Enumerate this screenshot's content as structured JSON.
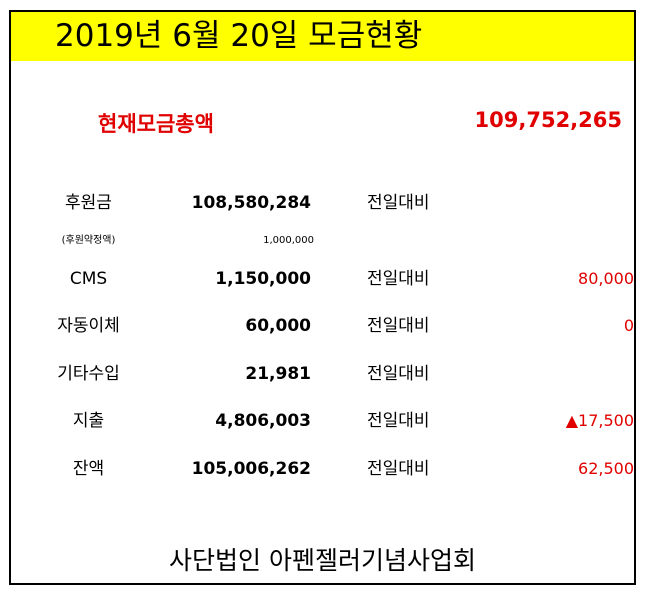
{
  "title": "2019년 6월 20일 모금현황",
  "total": {
    "label": "현재모금총액",
    "value": "109,752,265"
  },
  "compare_label": "전일대비",
  "rows": [
    {
      "label": "후원금",
      "value": "108,580,284",
      "compare": "전일대비",
      "diff": ""
    },
    {
      "label": "(후원약정액)",
      "value": "1,000,000",
      "compare": "",
      "diff": ""
    },
    {
      "label": "CMS",
      "value": "1,150,000",
      "compare": "전일대비",
      "diff": "80,000"
    },
    {
      "label": "자동이체",
      "value": "60,000",
      "compare": "전일대비",
      "diff": "0"
    },
    {
      "label": "기타수입",
      "value": "21,981",
      "compare": "전일대비",
      "diff": ""
    },
    {
      "label": "지출",
      "value": "4,806,003",
      "compare": "전일대비",
      "diff": "▲17,500"
    },
    {
      "label": "잔액",
      "value": "105,006,262",
      "compare": "전일대비",
      "diff": "62,500"
    }
  ],
  "footer": "사단법인 아펜젤러기념사업회"
}
